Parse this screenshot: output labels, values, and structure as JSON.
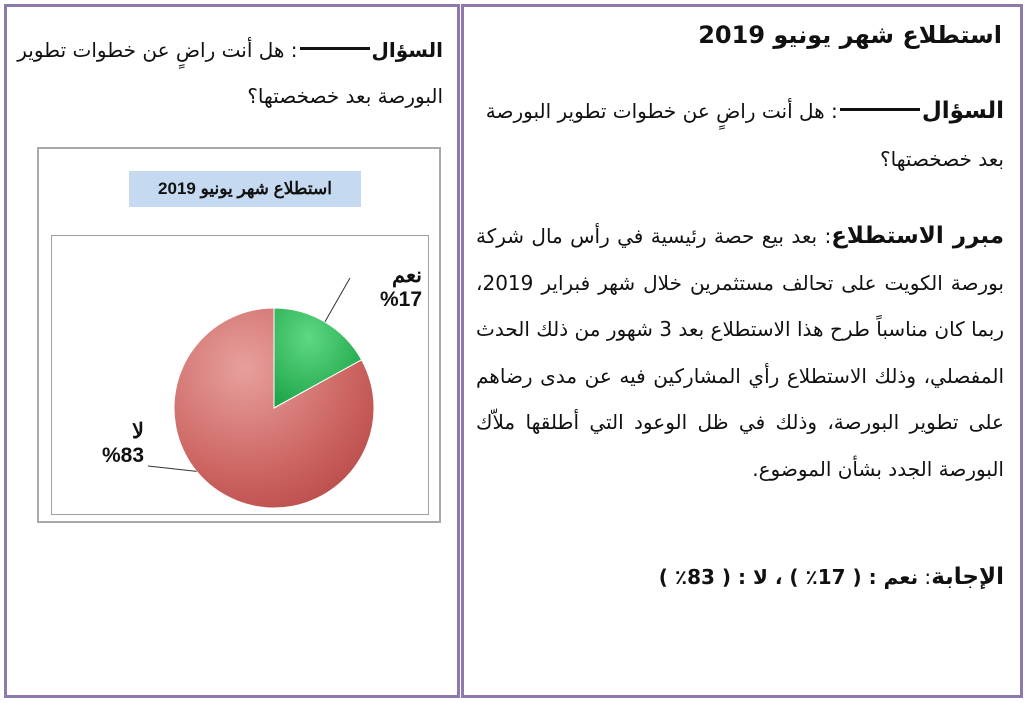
{
  "left": {
    "question_label": "السؤال",
    "question_text": "هل أنت راضٍ عن خطوات تطوير البورصة بعد خصخصتها؟"
  },
  "chart_data": {
    "type": "pie",
    "title": "استطلاع شهر يونيو 2019",
    "slices": [
      {
        "label": "نعم",
        "value": 17,
        "value_text": "%17",
        "color": "#1fb150"
      },
      {
        "label": "لا",
        "value": 83,
        "value_text": "%83",
        "color": "#c0504d"
      }
    ]
  },
  "right": {
    "title": "استطلاع شهر يونيو 2019",
    "question_label": "السؤال",
    "question_text": "هل أنت راضٍ عن خطوات تطوير البورصة بعد خصخصتها؟",
    "rationale_label": "مبرر الاستطلاع",
    "rationale_text": "بعد بيع حصة رئيسية في رأس مال شركة بورصة الكويت على تحالف مستثمرين خلال شهر فبراير 2019، ربما كان مناسباً طرح هذا الاستطلاع بعد 3 شهور من ذلك الحدث المفصلي، وذلك الاستطلاع رأي المشاركين فيه عن مدى رضاهم على تطوير البورصة، وذلك في ظل الوعود التي أطلقها ملاّك البورصة الجدد بشأن الموضوع.",
    "answer_label": "الإجابة",
    "answer_text": "نعم : ( 17٪ ) ، لا : ( 83٪ )"
  }
}
